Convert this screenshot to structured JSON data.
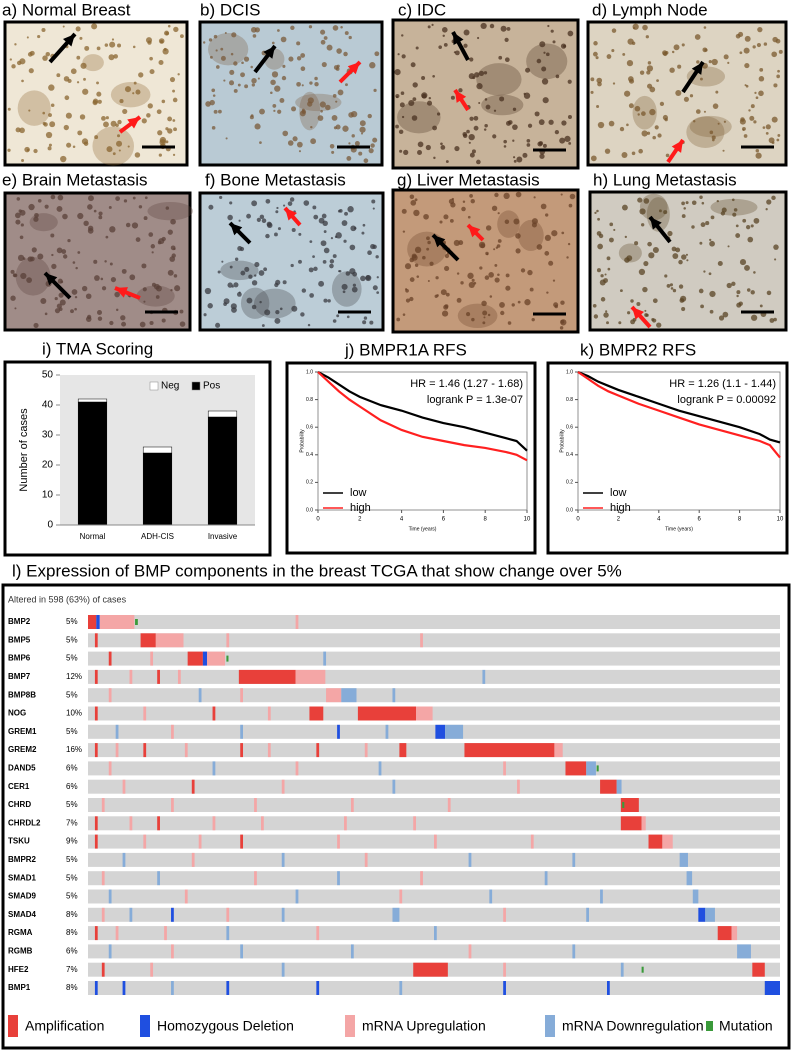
{
  "images": [
    {
      "label": "a) Normal Breast"
    },
    {
      "label": "b) DCIS"
    },
    {
      "label": "c) IDC"
    },
    {
      "label": "d) Lymph Node"
    },
    {
      "label": "e) Brain Metastasis"
    },
    {
      "label": "f) Bone Metastasis"
    },
    {
      "label": "g) Liver Metastasis"
    },
    {
      "label": "h) Lung Metastasis"
    }
  ],
  "chart_data": [
    {
      "type": "bar",
      "title": "i) TMA Scoring",
      "y_label": "Number of cases",
      "categories": [
        "Normal",
        "ADH-CIS",
        "Invasive"
      ],
      "series": [
        {
          "name": "Neg",
          "color": "#ffffff",
          "values": [
            1,
            2,
            2
          ]
        },
        {
          "name": "Pos",
          "color": "#000000",
          "values": [
            41,
            24,
            36
          ]
        }
      ],
      "ylim": [
        0,
        50
      ],
      "yticks": [
        0,
        10,
        20,
        30,
        40,
        50
      ],
      "stacked": true
    },
    {
      "type": "line",
      "title": "j) BMPR1A RFS",
      "annotations": [
        "HR = 1.46 (1.27 - 1.68)",
        "logrank P = 1.3e-07"
      ],
      "x_label": "Time (years)",
      "y_label": "Probability",
      "x": [
        0,
        0.5,
        1,
        1.5,
        2,
        3,
        4,
        5,
        6,
        7,
        8,
        9,
        9.5,
        10
      ],
      "series": [
        {
          "name": "low",
          "color": "#000000",
          "values": [
            1,
            0.96,
            0.91,
            0.86,
            0.82,
            0.76,
            0.72,
            0.67,
            0.63,
            0.6,
            0.56,
            0.52,
            0.5,
            0.43
          ]
        },
        {
          "name": "high",
          "color": "#ff2020",
          "values": [
            1,
            0.93,
            0.86,
            0.8,
            0.75,
            0.65,
            0.58,
            0.53,
            0.5,
            0.47,
            0.45,
            0.42,
            0.4,
            0.36
          ]
        }
      ],
      "xlim": [
        0,
        10
      ],
      "ylim": [
        0,
        1
      ],
      "xticks": [
        0,
        2,
        4,
        6,
        8,
        10
      ],
      "yticks": [
        {
          "value": 0,
          "label": "0.0"
        },
        0.2,
        0.4,
        0.6,
        0.8,
        {
          "value": 1,
          "label": "1.0"
        }
      ]
    },
    {
      "type": "line",
      "title": "k) BMPR2 RFS",
      "annotations": [
        "HR = 1.26 (1.1 - 1.44)",
        "logrank P = 0.00092"
      ],
      "x_label": "Time (years)",
      "y_label": "Probability",
      "x": [
        0,
        0.5,
        1,
        1.5,
        2,
        3,
        4,
        5,
        6,
        7,
        8,
        9,
        9.5,
        10
      ],
      "series": [
        {
          "name": "low",
          "color": "#000000",
          "values": [
            1,
            0.97,
            0.93,
            0.9,
            0.87,
            0.82,
            0.77,
            0.72,
            0.68,
            0.64,
            0.6,
            0.55,
            0.51,
            0.49
          ]
        },
        {
          "name": "high",
          "color": "#ff2020",
          "values": [
            1,
            0.95,
            0.9,
            0.86,
            0.83,
            0.77,
            0.72,
            0.67,
            0.62,
            0.58,
            0.54,
            0.5,
            0.47,
            0.38
          ]
        }
      ],
      "xlim": [
        0,
        10
      ],
      "ylim": [
        0,
        1
      ],
      "xticks": [
        0,
        2,
        4,
        6,
        8,
        10
      ],
      "yticks": [
        {
          "value": 0,
          "label": "0.0"
        },
        0.2,
        0.4,
        0.6,
        0.8,
        {
          "value": 1,
          "label": "1.0"
        }
      ]
    }
  ],
  "oncoprint": {
    "title": "l) Expression of BMP components in the breast TCGA that show change over 5%",
    "subtitle": "Altered in 598 (63%) of cases",
    "legend": [
      {
        "label": "Amplification",
        "color": "#e8403a"
      },
      {
        "label": "Homozygous Deletion",
        "color": "#1f4fe0"
      },
      {
        "label": "mRNA Upregulation",
        "color": "#f4a6a6"
      },
      {
        "label": "mRNA Downregulation",
        "color": "#86acd8"
      },
      {
        "label": "Mutation",
        "color": "#3a9a3a"
      }
    ],
    "genes": [
      {
        "name": "BMP2",
        "percent": "5%",
        "alterations": [
          [
            0,
            1.2,
            0
          ],
          [
            1.2,
            0.5,
            1
          ],
          [
            1.7,
            5,
            2
          ],
          [
            6.8,
            0.4,
            4
          ],
          [
            30,
            0.4,
            2
          ]
        ]
      },
      {
        "name": "BMP5",
        "percent": "5%",
        "alterations": [
          [
            7.6,
            2.2,
            0
          ],
          [
            9.8,
            4,
            2
          ],
          [
            1,
            0.4,
            0
          ],
          [
            20,
            0.4,
            2
          ],
          [
            48,
            0.4,
            2
          ]
        ]
      },
      {
        "name": "BMP6",
        "percent": "5%",
        "alterations": [
          [
            14.4,
            2.2,
            0
          ],
          [
            16.6,
            0.6,
            1
          ],
          [
            17.2,
            2.6,
            2
          ],
          [
            20,
            0.3,
            4
          ],
          [
            3,
            0.4,
            0
          ],
          [
            9,
            0.4,
            2
          ],
          [
            34,
            0.4,
            3
          ]
        ]
      },
      {
        "name": "BMP7",
        "percent": "12%",
        "alterations": [
          [
            21.8,
            8.2,
            0
          ],
          [
            30,
            4.3,
            2
          ],
          [
            1,
            0.4,
            0
          ],
          [
            6,
            0.4,
            2
          ],
          [
            10,
            0.4,
            0
          ],
          [
            13,
            0.4,
            2
          ],
          [
            57,
            0.4,
            3
          ]
        ]
      },
      {
        "name": "BMP8B",
        "percent": "5%",
        "alterations": [
          [
            34.4,
            2.2,
            2
          ],
          [
            36.6,
            2.2,
            3
          ],
          [
            3,
            0.4,
            2
          ],
          [
            16,
            0.4,
            3
          ],
          [
            22,
            0.4,
            2
          ],
          [
            44,
            0.4,
            3
          ]
        ]
      },
      {
        "name": "NOG",
        "percent": "10%",
        "alterations": [
          [
            39,
            8.4,
            0
          ],
          [
            47.4,
            2.4,
            2
          ],
          [
            1,
            0.4,
            0
          ],
          [
            8,
            0.4,
            2
          ],
          [
            18,
            0.4,
            0
          ],
          [
            26,
            0.4,
            2
          ],
          [
            32,
            2,
            0
          ]
        ]
      },
      {
        "name": "GREM1",
        "percent": "5%",
        "alterations": [
          [
            50.2,
            1.4,
            1
          ],
          [
            51.6,
            2.6,
            3
          ],
          [
            4,
            0.4,
            3
          ],
          [
            12,
            0.4,
            2
          ],
          [
            22,
            0.4,
            3
          ],
          [
            36,
            0.4,
            1
          ],
          [
            43,
            0.4,
            3
          ]
        ]
      },
      {
        "name": "GREM2",
        "percent": "16%",
        "alterations": [
          [
            54.4,
            13,
            0
          ],
          [
            67.4,
            1.2,
            2
          ],
          [
            1,
            0.4,
            0
          ],
          [
            4,
            0.4,
            2
          ],
          [
            8,
            0.4,
            0
          ],
          [
            14,
            0.4,
            2
          ],
          [
            22,
            0.4,
            0
          ],
          [
            26,
            0.4,
            2
          ],
          [
            33,
            0.4,
            0
          ],
          [
            40,
            0.4,
            2
          ],
          [
            45,
            1,
            0
          ]
        ]
      },
      {
        "name": "DAND5",
        "percent": "6%",
        "alterations": [
          [
            69,
            3,
            0
          ],
          [
            72,
            1.4,
            3
          ],
          [
            3,
            0.4,
            2
          ],
          [
            18,
            0.4,
            3
          ],
          [
            30,
            0.4,
            2
          ],
          [
            42,
            0.4,
            3
          ],
          [
            60,
            0.4,
            2
          ],
          [
            73.5,
            0.3,
            4
          ]
        ]
      },
      {
        "name": "CER1",
        "percent": "6%",
        "alterations": [
          [
            74,
            2.4,
            0
          ],
          [
            76.4,
            0.7,
            3
          ],
          [
            5,
            0.4,
            2
          ],
          [
            15,
            0.4,
            0
          ],
          [
            28,
            0.4,
            2
          ],
          [
            44,
            0.4,
            3
          ],
          [
            62,
            0.4,
            2
          ]
        ]
      },
      {
        "name": "CHRD",
        "percent": "5%",
        "alterations": [
          [
            77,
            2.6,
            0
          ],
          [
            77.2,
            0.3,
            4
          ],
          [
            2,
            0.4,
            2
          ],
          [
            12,
            0.4,
            2
          ],
          [
            24,
            0.4,
            2
          ],
          [
            38,
            0.4,
            2
          ],
          [
            52,
            0.4,
            2
          ]
        ]
      },
      {
        "name": "CHRDL2",
        "percent": "7%",
        "alterations": [
          [
            77,
            3,
            0
          ],
          [
            80,
            0.6,
            2
          ],
          [
            1,
            0.4,
            0
          ],
          [
            6,
            0.4,
            2
          ],
          [
            10,
            0.4,
            0
          ],
          [
            18,
            0.4,
            2
          ],
          [
            25,
            0.4,
            2
          ],
          [
            37,
            0.4,
            2
          ],
          [
            47,
            0.4,
            2
          ]
        ]
      },
      {
        "name": "TSKU",
        "percent": "9%",
        "alterations": [
          [
            81,
            2,
            0
          ],
          [
            83,
            1.5,
            2
          ],
          [
            1,
            0.4,
            0
          ],
          [
            8,
            0.4,
            2
          ],
          [
            16,
            0.4,
            2
          ],
          [
            22,
            0.4,
            0
          ],
          [
            36,
            0.4,
            2
          ],
          [
            50,
            0.4,
            2
          ],
          [
            64,
            0.4,
            2
          ]
        ]
      },
      {
        "name": "BMPR2",
        "percent": "5%",
        "alterations": [
          [
            85.5,
            1.2,
            3
          ],
          [
            5,
            0.4,
            3
          ],
          [
            15,
            0.4,
            2
          ],
          [
            28,
            0.4,
            3
          ],
          [
            40,
            0.4,
            2
          ],
          [
            55,
            0.4,
            3
          ],
          [
            70,
            0.4,
            3
          ]
        ]
      },
      {
        "name": "SMAD1",
        "percent": "5%",
        "alterations": [
          [
            86.5,
            0.8,
            3
          ],
          [
            2,
            0.4,
            2
          ],
          [
            10,
            0.4,
            3
          ],
          [
            24,
            0.4,
            2
          ],
          [
            36,
            0.4,
            3
          ],
          [
            48,
            0.4,
            2
          ],
          [
            66,
            0.4,
            3
          ]
        ]
      },
      {
        "name": "SMAD9",
        "percent": "5%",
        "alterations": [
          [
            87.4,
            0.8,
            3
          ],
          [
            3,
            0.4,
            3
          ],
          [
            14,
            0.4,
            2
          ],
          [
            30,
            0.4,
            3
          ],
          [
            45,
            0.4,
            2
          ],
          [
            58,
            0.4,
            3
          ],
          [
            74,
            0.4,
            3
          ]
        ]
      },
      {
        "name": "SMAD4",
        "percent": "8%",
        "alterations": [
          [
            88.2,
            1,
            1
          ],
          [
            89.2,
            1.4,
            3
          ],
          [
            2,
            0.4,
            2
          ],
          [
            6,
            0.4,
            3
          ],
          [
            12,
            0.4,
            1
          ],
          [
            20,
            0.4,
            2
          ],
          [
            28,
            0.4,
            3
          ],
          [
            44,
            1,
            3
          ],
          [
            60,
            0.4,
            2
          ],
          [
            72,
            0.4,
            3
          ]
        ]
      },
      {
        "name": "RGMA",
        "percent": "8%",
        "alterations": [
          [
            91,
            2,
            0
          ],
          [
            93,
            0.8,
            2
          ],
          [
            1,
            0.4,
            0
          ],
          [
            4,
            0.4,
            2
          ],
          [
            11,
            0.4,
            2
          ],
          [
            20,
            0.4,
            3
          ],
          [
            33,
            0.4,
            2
          ],
          [
            50,
            0.4,
            3
          ]
        ]
      },
      {
        "name": "RGMB",
        "percent": "6%",
        "alterations": [
          [
            93.8,
            2,
            3
          ],
          [
            3,
            0.4,
            3
          ],
          [
            12,
            0.4,
            2
          ],
          [
            22,
            0.4,
            3
          ],
          [
            38,
            0.4,
            3
          ],
          [
            55,
            0.4,
            2
          ],
          [
            70,
            0.4,
            3
          ]
        ]
      },
      {
        "name": "HFE2",
        "percent": "7%",
        "alterations": [
          [
            96,
            1.8,
            0
          ],
          [
            2,
            0.4,
            0
          ],
          [
            9,
            0.4,
            2
          ],
          [
            28,
            0.4,
            3
          ],
          [
            47,
            5,
            0
          ],
          [
            60,
            0.4,
            2
          ],
          [
            77,
            0.4,
            3
          ],
          [
            80,
            0.3,
            4
          ]
        ]
      },
      {
        "name": "BMP1",
        "percent": "8%",
        "alterations": [
          [
            97.8,
            2.2,
            1
          ],
          [
            1,
            0.4,
            1
          ],
          [
            5,
            0.4,
            1
          ],
          [
            12,
            0.4,
            3
          ],
          [
            20,
            0.4,
            1
          ],
          [
            33,
            0.4,
            1
          ],
          [
            45,
            0.4,
            3
          ],
          [
            60,
            0.4,
            1
          ],
          [
            75,
            0.4,
            1
          ]
        ]
      }
    ]
  }
}
